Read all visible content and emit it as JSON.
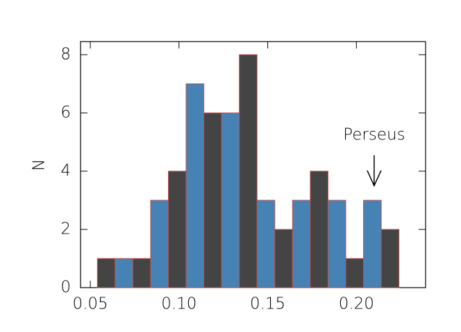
{
  "chart_data": {
    "type": "histogram",
    "ylabel": "N",
    "bins": [
      0.054,
      0.064,
      0.074,
      0.084,
      0.094,
      0.104,
      0.114,
      0.124,
      0.134,
      0.144,
      0.154,
      0.164,
      0.174,
      0.184,
      0.194,
      0.204,
      0.214,
      0.224
    ],
    "values": [
      1,
      1,
      1,
      3,
      4,
      7,
      6,
      6,
      8,
      3,
      2,
      3,
      4,
      3,
      1,
      3,
      2
    ],
    "colors": [
      "#444444",
      "#4682b4"
    ],
    "edgecolor": "#c0504d",
    "xlim": [
      0.0445,
      0.239
    ],
    "ylim": [
      0,
      8.45
    ],
    "xticks": [
      0.05,
      {
        "value": 0.1,
        "label": "0.10"
      },
      0.15,
      {
        "value": 0.2,
        "label": "0.20"
      }
    ],
    "yticks": [
      0,
      2,
      4,
      6,
      8
    ],
    "annotation": {
      "text": "Perseus",
      "x": 0.21,
      "y": 3.5
    }
  }
}
